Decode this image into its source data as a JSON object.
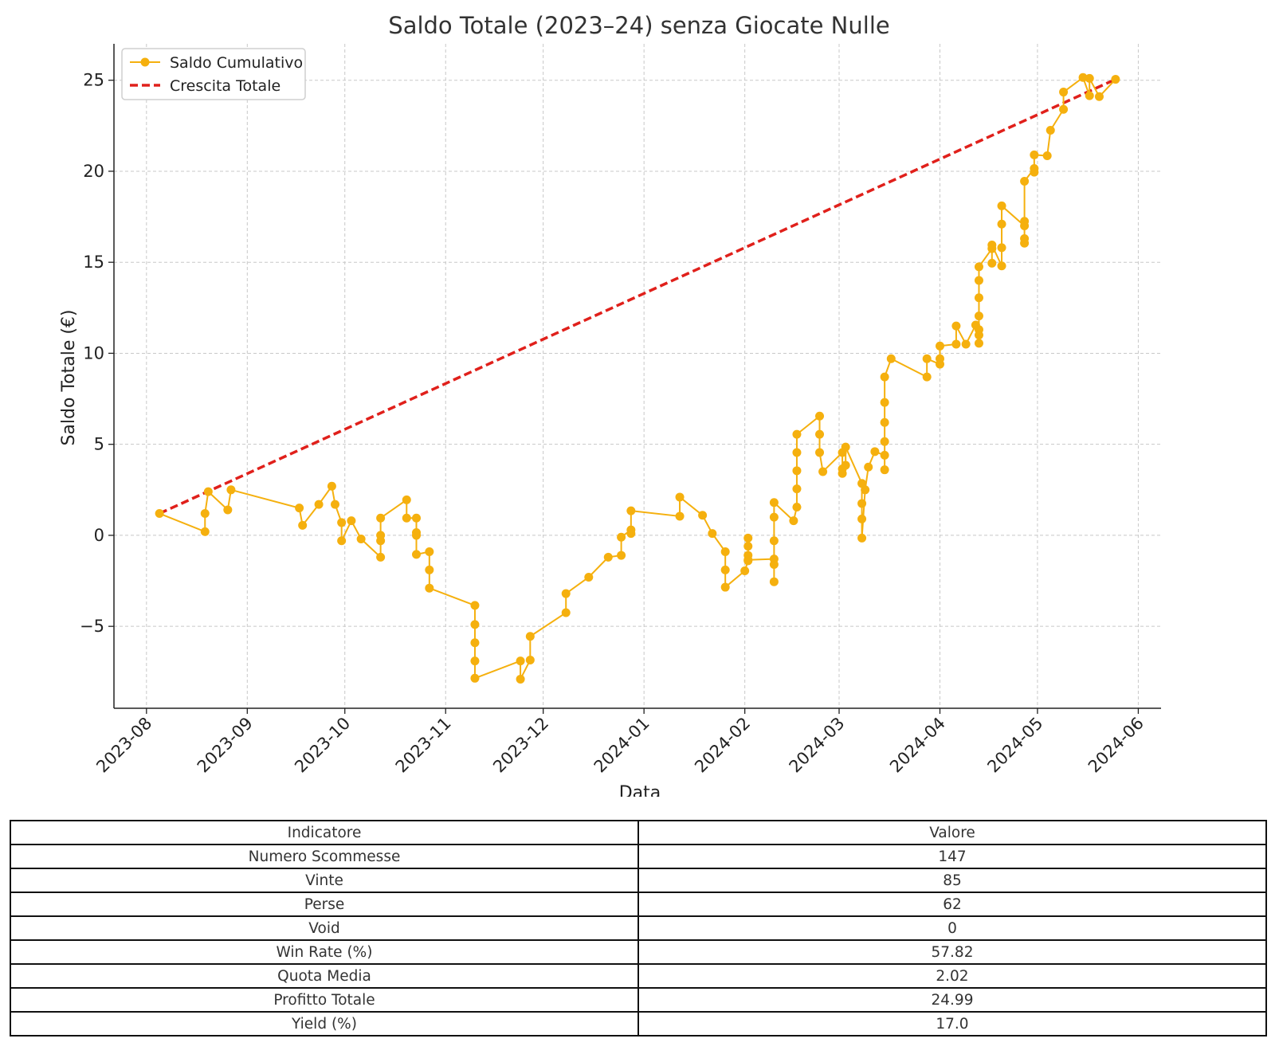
{
  "chart_data": {
    "type": "line",
    "title": "Saldo Totale (2023–24) senza Giocate Nulle",
    "xlabel": "Data",
    "ylabel": "Saldo Totale (€)",
    "xlim": [
      "2023-07-22",
      "2024-06-08"
    ],
    "ylim": [
      -9.5,
      27
    ],
    "x_ticks": [
      "2023-08",
      "2023-09",
      "2023-10",
      "2023-11",
      "2023-12",
      "2024-01",
      "2024-02",
      "2024-03",
      "2024-04",
      "2024-05",
      "2024-06"
    ],
    "y_ticks": [
      -5,
      0,
      5,
      10,
      15,
      20,
      25
    ],
    "y_tick_labels": [
      "−5",
      "0",
      "5",
      "10",
      "15",
      "20",
      "25"
    ],
    "grid": true,
    "legend_position": "top-left",
    "series": [
      {
        "name": "Saldo Cumulativo",
        "color": "#f5b00e",
        "style": "solid-line-with-markers",
        "points": [
          [
            "2023-08-05",
            1.2
          ],
          [
            "2023-08-19",
            0.2
          ],
          [
            "2023-08-19",
            1.2
          ],
          [
            "2023-08-20",
            2.4
          ],
          [
            "2023-08-26",
            1.4
          ],
          [
            "2023-08-27",
            2.5
          ],
          [
            "2023-09-17",
            1.5
          ],
          [
            "2023-09-18",
            0.55
          ],
          [
            "2023-09-23",
            1.7
          ],
          [
            "2023-09-27",
            2.7
          ],
          [
            "2023-09-28",
            1.7
          ],
          [
            "2023-09-30",
            0.7
          ],
          [
            "2023-09-30",
            -0.3
          ],
          [
            "2023-10-03",
            0.8
          ],
          [
            "2023-10-06",
            -0.2
          ],
          [
            "2023-10-12",
            -1.2
          ],
          [
            "2023-10-12",
            -0.3
          ],
          [
            "2023-10-12",
            0.0
          ],
          [
            "2023-10-12",
            0.95
          ],
          [
            "2023-10-20",
            1.95
          ],
          [
            "2023-10-20",
            0.95
          ],
          [
            "2023-10-23",
            0.95
          ],
          [
            "2023-10-23",
            0.15
          ],
          [
            "2023-10-23",
            0.0
          ],
          [
            "2023-10-23",
            -1.05
          ],
          [
            "2023-10-27",
            -0.9
          ],
          [
            "2023-10-27",
            -1.9
          ],
          [
            "2023-10-27",
            -2.9
          ],
          [
            "2023-11-10",
            -3.85
          ],
          [
            "2023-11-10",
            -4.9
          ],
          [
            "2023-11-10",
            -5.9
          ],
          [
            "2023-11-10",
            -6.9
          ],
          [
            "2023-11-10",
            -7.85
          ],
          [
            "2023-11-24",
            -6.9
          ],
          [
            "2023-11-24",
            -7.9
          ],
          [
            "2023-11-27",
            -6.85
          ],
          [
            "2023-11-27",
            -5.55
          ],
          [
            "2023-12-08",
            -4.25
          ],
          [
            "2023-12-08",
            -3.2
          ],
          [
            "2023-12-15",
            -2.3
          ],
          [
            "2023-12-21",
            -1.2
          ],
          [
            "2023-12-25",
            -1.1
          ],
          [
            "2023-12-25",
            -0.1
          ],
          [
            "2023-12-28",
            0.3
          ],
          [
            "2023-12-28",
            0.1
          ],
          [
            "2023-12-28",
            1.35
          ],
          [
            "2024-01-12",
            1.05
          ],
          [
            "2024-01-12",
            2.1
          ],
          [
            "2024-01-19",
            1.1
          ],
          [
            "2024-01-22",
            0.1
          ],
          [
            "2024-01-26",
            -0.9
          ],
          [
            "2024-01-26",
            -1.9
          ],
          [
            "2024-01-26",
            -2.85
          ],
          [
            "2024-02-01",
            -1.95
          ],
          [
            "2024-02-02",
            -1.4
          ],
          [
            "2024-02-02",
            -1.1
          ],
          [
            "2024-02-02",
            -0.6
          ],
          [
            "2024-02-02",
            -0.15
          ],
          [
            "2024-02-02",
            -1.35
          ],
          [
            "2024-02-10",
            -1.3
          ],
          [
            "2024-02-10",
            -1.6
          ],
          [
            "2024-02-10",
            -2.55
          ],
          [
            "2024-02-10",
            -0.3
          ],
          [
            "2024-02-10",
            1.0
          ],
          [
            "2024-02-10",
            1.8
          ],
          [
            "2024-02-16",
            0.8
          ],
          [
            "2024-02-17",
            1.55
          ],
          [
            "2024-02-17",
            2.55
          ],
          [
            "2024-02-17",
            3.55
          ],
          [
            "2024-02-17",
            4.55
          ],
          [
            "2024-02-17",
            5.55
          ],
          [
            "2024-02-24",
            6.55
          ],
          [
            "2024-02-24",
            5.55
          ],
          [
            "2024-02-24",
            4.55
          ],
          [
            "2024-02-25",
            3.5
          ],
          [
            "2024-03-02",
            4.55
          ],
          [
            "2024-03-02",
            3.4
          ],
          [
            "2024-03-02",
            3.65
          ],
          [
            "2024-03-03",
            3.85
          ],
          [
            "2024-03-03",
            4.85
          ],
          [
            "2024-03-08",
            2.85
          ],
          [
            "2024-03-08",
            1.75
          ],
          [
            "2024-03-08",
            0.9
          ],
          [
            "2024-03-08",
            -0.15
          ],
          [
            "2024-03-09",
            2.5
          ],
          [
            "2024-03-10",
            3.75
          ],
          [
            "2024-03-12",
            4.6
          ],
          [
            "2024-03-15",
            4.4
          ],
          [
            "2024-03-15",
            3.6
          ],
          [
            "2024-03-15",
            5.15
          ],
          [
            "2024-03-15",
            6.2
          ],
          [
            "2024-03-15",
            7.3
          ],
          [
            "2024-03-15",
            8.7
          ],
          [
            "2024-03-17",
            9.7
          ],
          [
            "2024-03-28",
            8.7
          ],
          [
            "2024-03-28",
            9.7
          ],
          [
            "2024-04-01",
            9.4
          ],
          [
            "2024-04-01",
            9.7
          ],
          [
            "2024-04-01",
            10.4
          ],
          [
            "2024-04-06",
            10.5
          ],
          [
            "2024-04-06",
            11.5
          ],
          [
            "2024-04-09",
            10.5
          ],
          [
            "2024-04-12",
            11.55
          ],
          [
            "2024-04-13",
            10.55
          ],
          [
            "2024-04-13",
            11.0
          ],
          [
            "2024-04-13",
            11.3
          ],
          [
            "2024-04-13",
            12.05
          ],
          [
            "2024-04-13",
            13.05
          ],
          [
            "2024-04-13",
            14.0
          ],
          [
            "2024-04-13",
            14.75
          ],
          [
            "2024-04-17",
            15.75
          ],
          [
            "2024-04-17",
            14.95
          ],
          [
            "2024-04-17",
            15.95
          ],
          [
            "2024-04-20",
            14.8
          ],
          [
            "2024-04-20",
            15.8
          ],
          [
            "2024-04-20",
            17.1
          ],
          [
            "2024-04-20",
            18.1
          ],
          [
            "2024-04-27",
            17.0
          ],
          [
            "2024-04-27",
            16.05
          ],
          [
            "2024-04-27",
            16.3
          ],
          [
            "2024-04-27",
            17.25
          ],
          [
            "2024-04-27",
            19.45
          ],
          [
            "2024-04-30",
            20.15
          ],
          [
            "2024-04-30",
            19.95
          ],
          [
            "2024-04-30",
            20.9
          ],
          [
            "2024-05-04",
            20.85
          ],
          [
            "2024-05-05",
            22.25
          ],
          [
            "2024-05-09",
            23.4
          ],
          [
            "2024-05-09",
            24.35
          ],
          [
            "2024-05-15",
            25.15
          ],
          [
            "2024-05-17",
            24.15
          ],
          [
            "2024-05-17",
            25.1
          ],
          [
            "2024-05-20",
            24.1
          ],
          [
            "2024-05-25",
            25.05
          ]
        ]
      },
      {
        "name": "Crescita Totale",
        "color": "#e0201b",
        "style": "dashed-line",
        "points": [
          [
            "2023-08-05",
            1.2
          ],
          [
            "2024-05-25",
            25.05
          ]
        ]
      }
    ]
  },
  "table": {
    "headers": [
      "Indicatore",
      "Valore"
    ],
    "rows": [
      [
        "Numero Scommesse",
        "147"
      ],
      [
        "Vinte",
        "85"
      ],
      [
        "Perse",
        "62"
      ],
      [
        "Void",
        "0"
      ],
      [
        "Win Rate (%)",
        "57.82"
      ],
      [
        "Quota Media",
        "2.02"
      ],
      [
        "Profitto Totale",
        "24.99"
      ],
      [
        "Yield (%)",
        "17.0"
      ]
    ]
  }
}
